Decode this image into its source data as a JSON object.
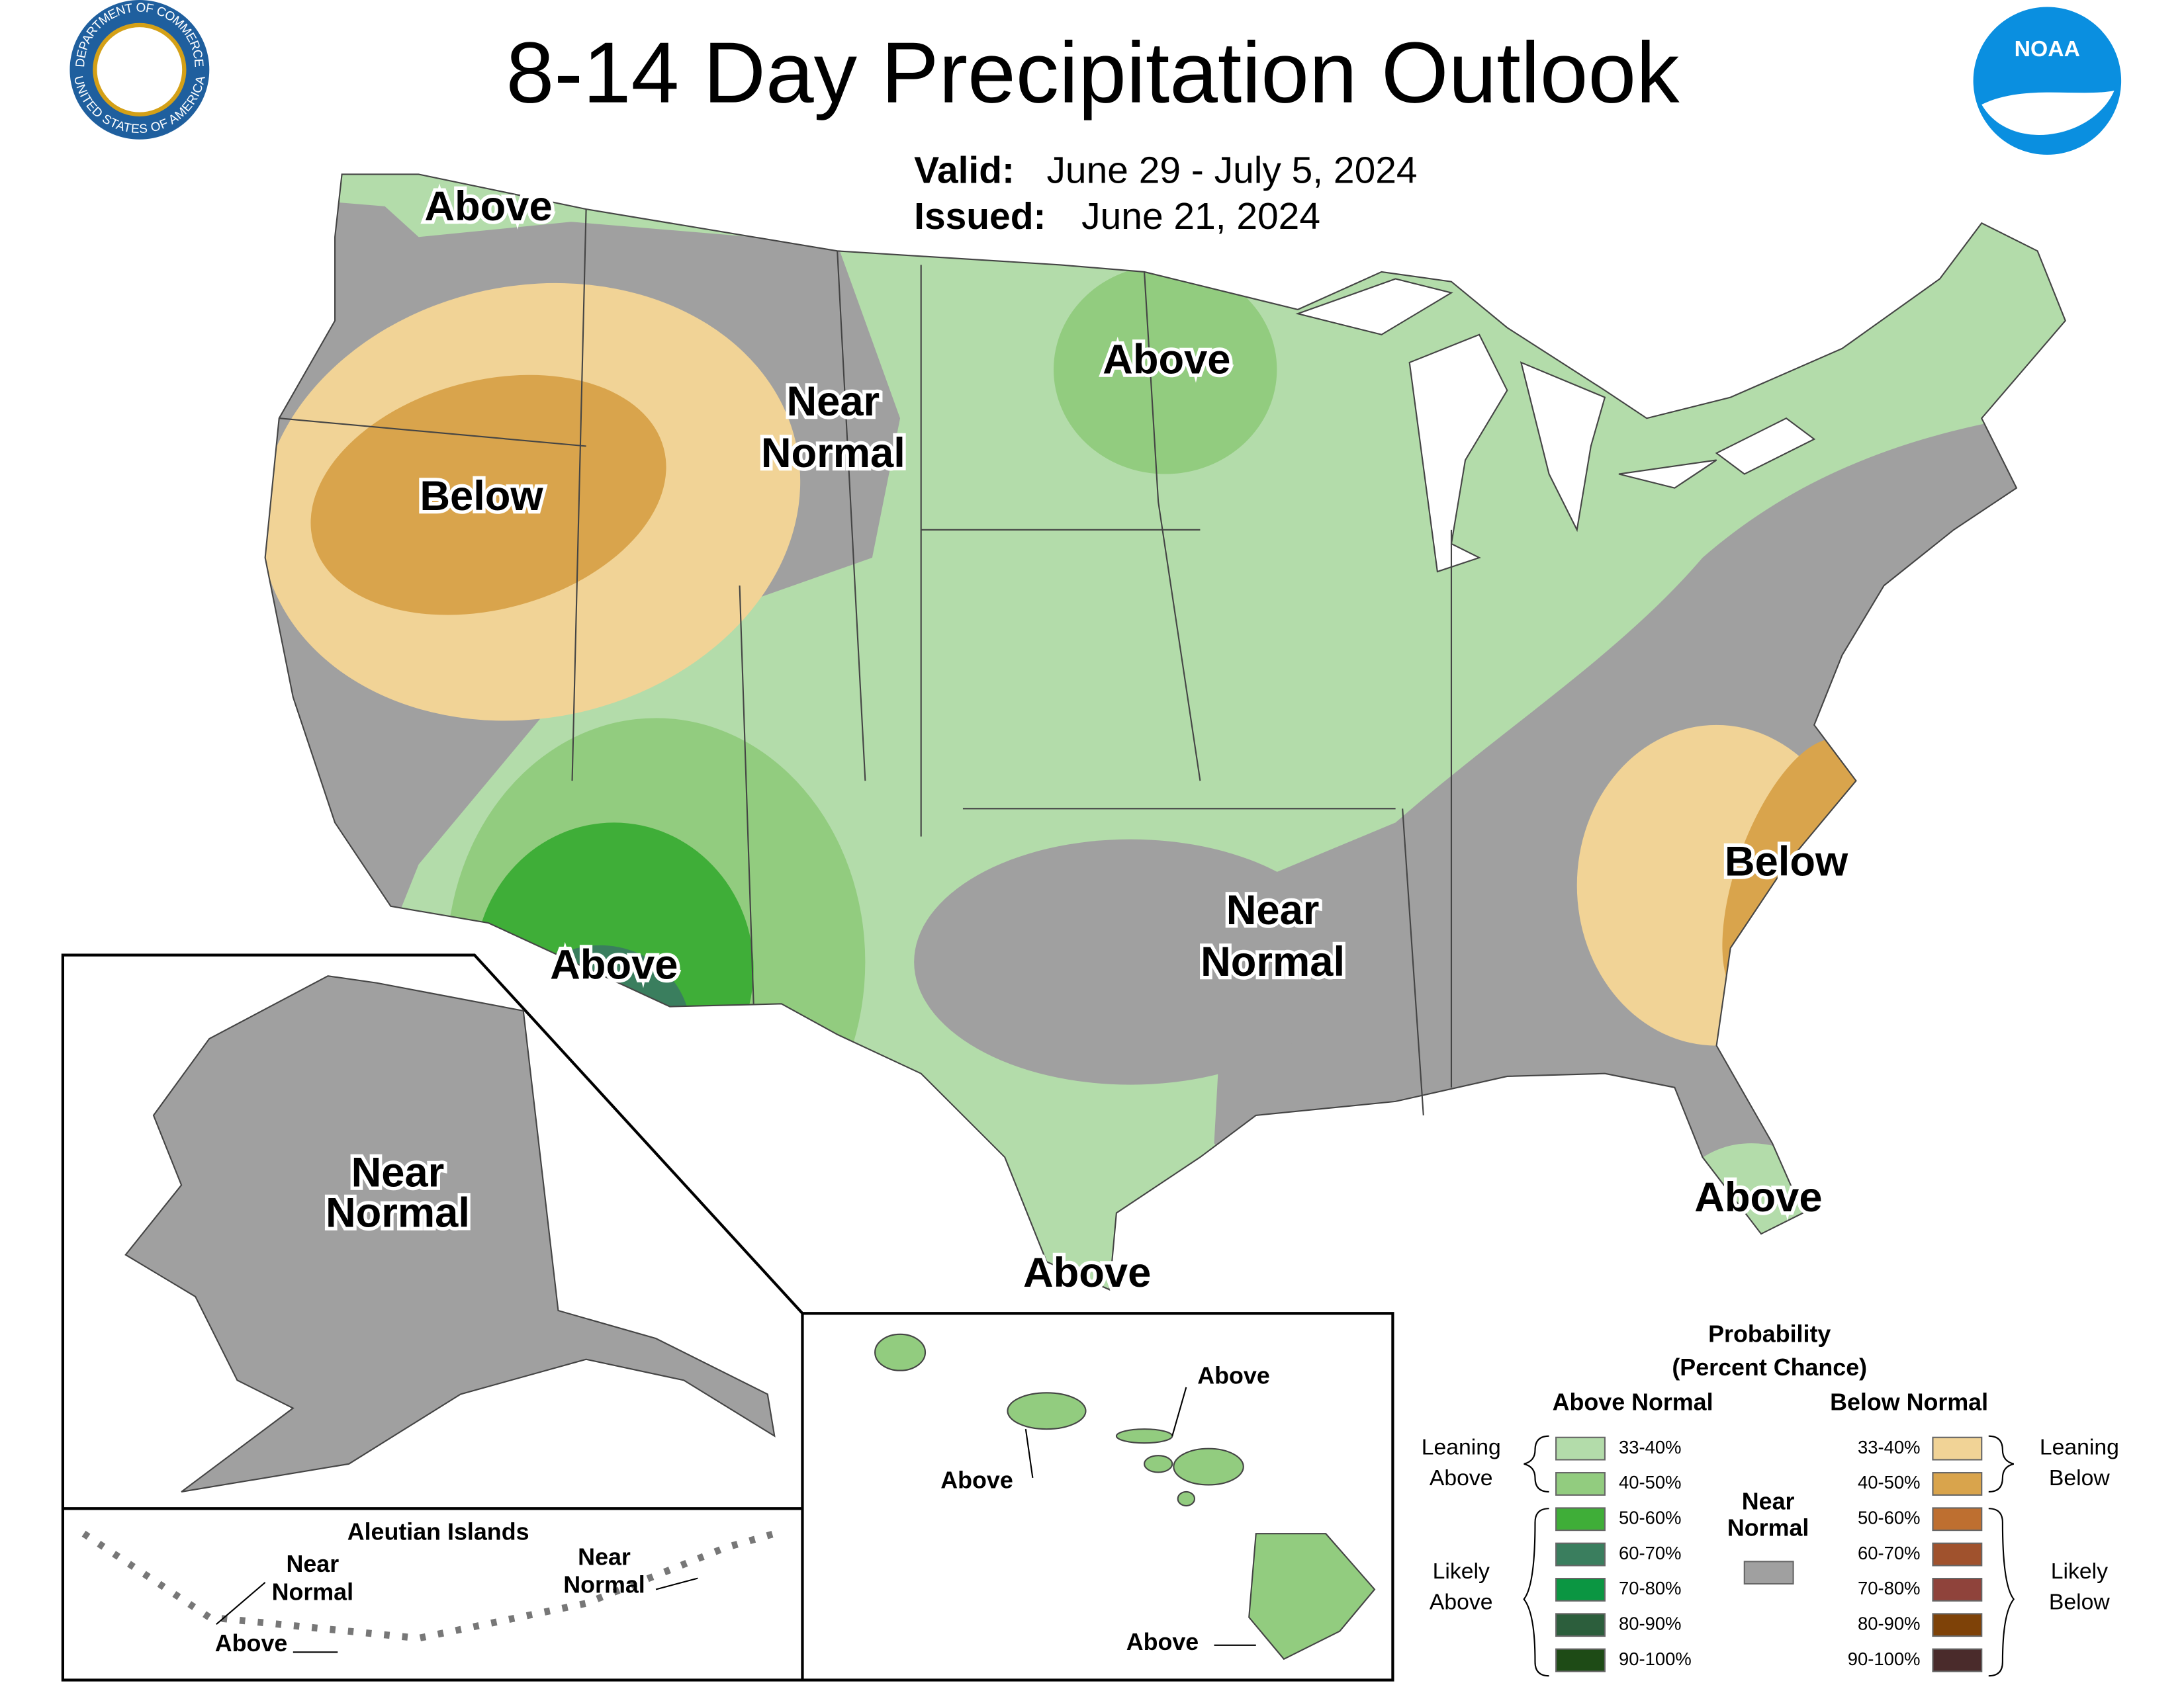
{
  "header": {
    "title": "8-14 Day Precipitation Outlook",
    "valid_label": "Valid:",
    "valid": "June 29 - July 5, 2024",
    "issued_label": "Issued:",
    "issued": "June 21, 2024",
    "seal_top": "DEPARTMENT OF COMMERCE",
    "seal_bottom": "UNITED STATES OF AMERICA",
    "noaa": "NOAA"
  },
  "map_labels": [
    {
      "lines": [
        "Above"
      ]
    },
    {
      "lines": [
        "Near",
        "Normal"
      ]
    },
    {
      "lines": [
        "Below"
      ]
    },
    {
      "lines": [
        "Above"
      ]
    },
    {
      "lines": [
        "Above"
      ]
    },
    {
      "lines": [
        "Near",
        "Normal"
      ]
    },
    {
      "lines": [
        "Below"
      ]
    },
    {
      "lines": [
        "Above"
      ]
    },
    {
      "lines": [
        "Above"
      ]
    }
  ],
  "alaska": {
    "label": [
      "Near",
      "Normal"
    ]
  },
  "aleutians": {
    "title": "Aleutian Islands",
    "labels": [
      {
        "lines": [
          "Near",
          "Normal"
        ]
      },
      {
        "lines": [
          "Above"
        ]
      },
      {
        "lines": [
          "Near",
          "Normal"
        ]
      }
    ]
  },
  "hawaii": {
    "labels": [
      {
        "lines": [
          "Above"
        ]
      },
      {
        "lines": [
          "Above"
        ]
      },
      {
        "lines": [
          "Above"
        ]
      }
    ]
  },
  "legend": {
    "title": [
      "Probability",
      "(Percent Chance)"
    ],
    "above_heading": "Above Normal",
    "below_heading": "Below Normal",
    "near": {
      "lines": [
        "Near",
        "Normal"
      ],
      "color": "#a0a0a0"
    },
    "groups": {
      "leaning_above": [
        "Leaning",
        "Above"
      ],
      "likely_above": [
        "Likely",
        "Above"
      ],
      "leaning_below": [
        "Leaning",
        "Below"
      ],
      "likely_below": [
        "Likely",
        "Below"
      ]
    },
    "above": [
      {
        "range": "33-40%",
        "color": "#b3dcaa"
      },
      {
        "range": "40-50%",
        "color": "#92cc7f"
      },
      {
        "range": "50-60%",
        "color": "#3fae38"
      },
      {
        "range": "60-70%",
        "color": "#3a7e5e"
      },
      {
        "range": "70-80%",
        "color": "#0b9642"
      },
      {
        "range": "80-90%",
        "color": "#2c5e3c"
      },
      {
        "range": "90-100%",
        "color": "#1e4b16"
      }
    ],
    "below": [
      {
        "range": "33-40%",
        "color": "#f1d396"
      },
      {
        "range": "40-50%",
        "color": "#d9a44c"
      },
      {
        "range": "50-60%",
        "color": "#be6f30"
      },
      {
        "range": "60-70%",
        "color": "#a0522d"
      },
      {
        "range": "70-80%",
        "color": "#8f433b"
      },
      {
        "range": "80-90%",
        "color": "#7e4208"
      },
      {
        "range": "90-100%",
        "color": "#4a2b2b"
      }
    ]
  }
}
